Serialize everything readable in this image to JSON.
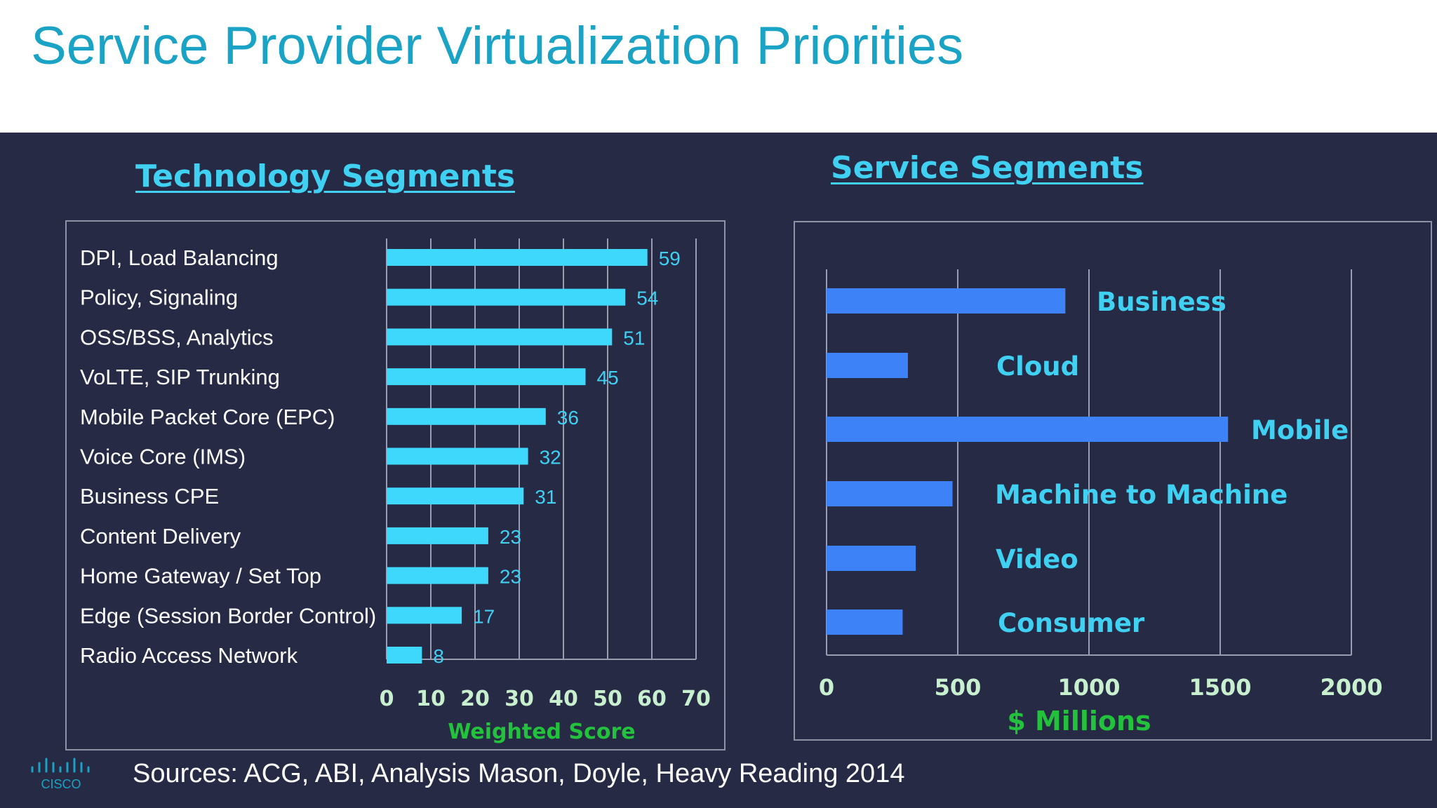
{
  "title": "Service Provider Virtualization Priorities",
  "sources": "Sources:   ACG, ABI, Analysis Mason, Doyle, Heavy Reading  2014",
  "logo_text": "CISCO",
  "colors": {
    "background": "#262a45",
    "title": "#1aa3c4",
    "cyan_bar": "#3dd8fb",
    "blue_bar": "#3d82f7",
    "label_cyan": "#3fd0f2",
    "axis_tick": "#c8f0cf",
    "axis_title_green": "#22c23c"
  },
  "chart_data": [
    {
      "type": "bar",
      "orientation": "horizontal",
      "title": "Technology Segments",
      "categories": [
        "DPI, Load Balancing",
        "Policy, Signaling",
        "OSS/BSS, Analytics",
        "VoLTE, SIP Trunking",
        "Mobile Packet Core (EPC)",
        "Voice Core (IMS)",
        "Business CPE",
        "Content Delivery",
        "Home Gateway / Set Top",
        "Edge (Session Border Control)",
        "Radio Access Network"
      ],
      "values": [
        59,
        54,
        51,
        45,
        36,
        32,
        31,
        23,
        23,
        17,
        8
      ],
      "xlabel": "Weighted Score",
      "xlim": [
        0,
        70
      ],
      "xticks": [
        0,
        10,
        20,
        30,
        40,
        50,
        60,
        70
      ],
      "grid": true,
      "data_labels": true
    },
    {
      "type": "bar",
      "orientation": "horizontal",
      "title": "Service Segments",
      "categories": [
        "Business",
        "Cloud",
        "Mobile",
        "Machine to Machine",
        "Video",
        "Consumer"
      ],
      "values": [
        910,
        310,
        1530,
        480,
        340,
        290
      ],
      "xlabel": "$ Millions",
      "xlim": [
        0,
        2000
      ],
      "xticks": [
        0,
        500,
        1000,
        1500,
        2000
      ],
      "grid": true,
      "data_labels": false
    }
  ]
}
